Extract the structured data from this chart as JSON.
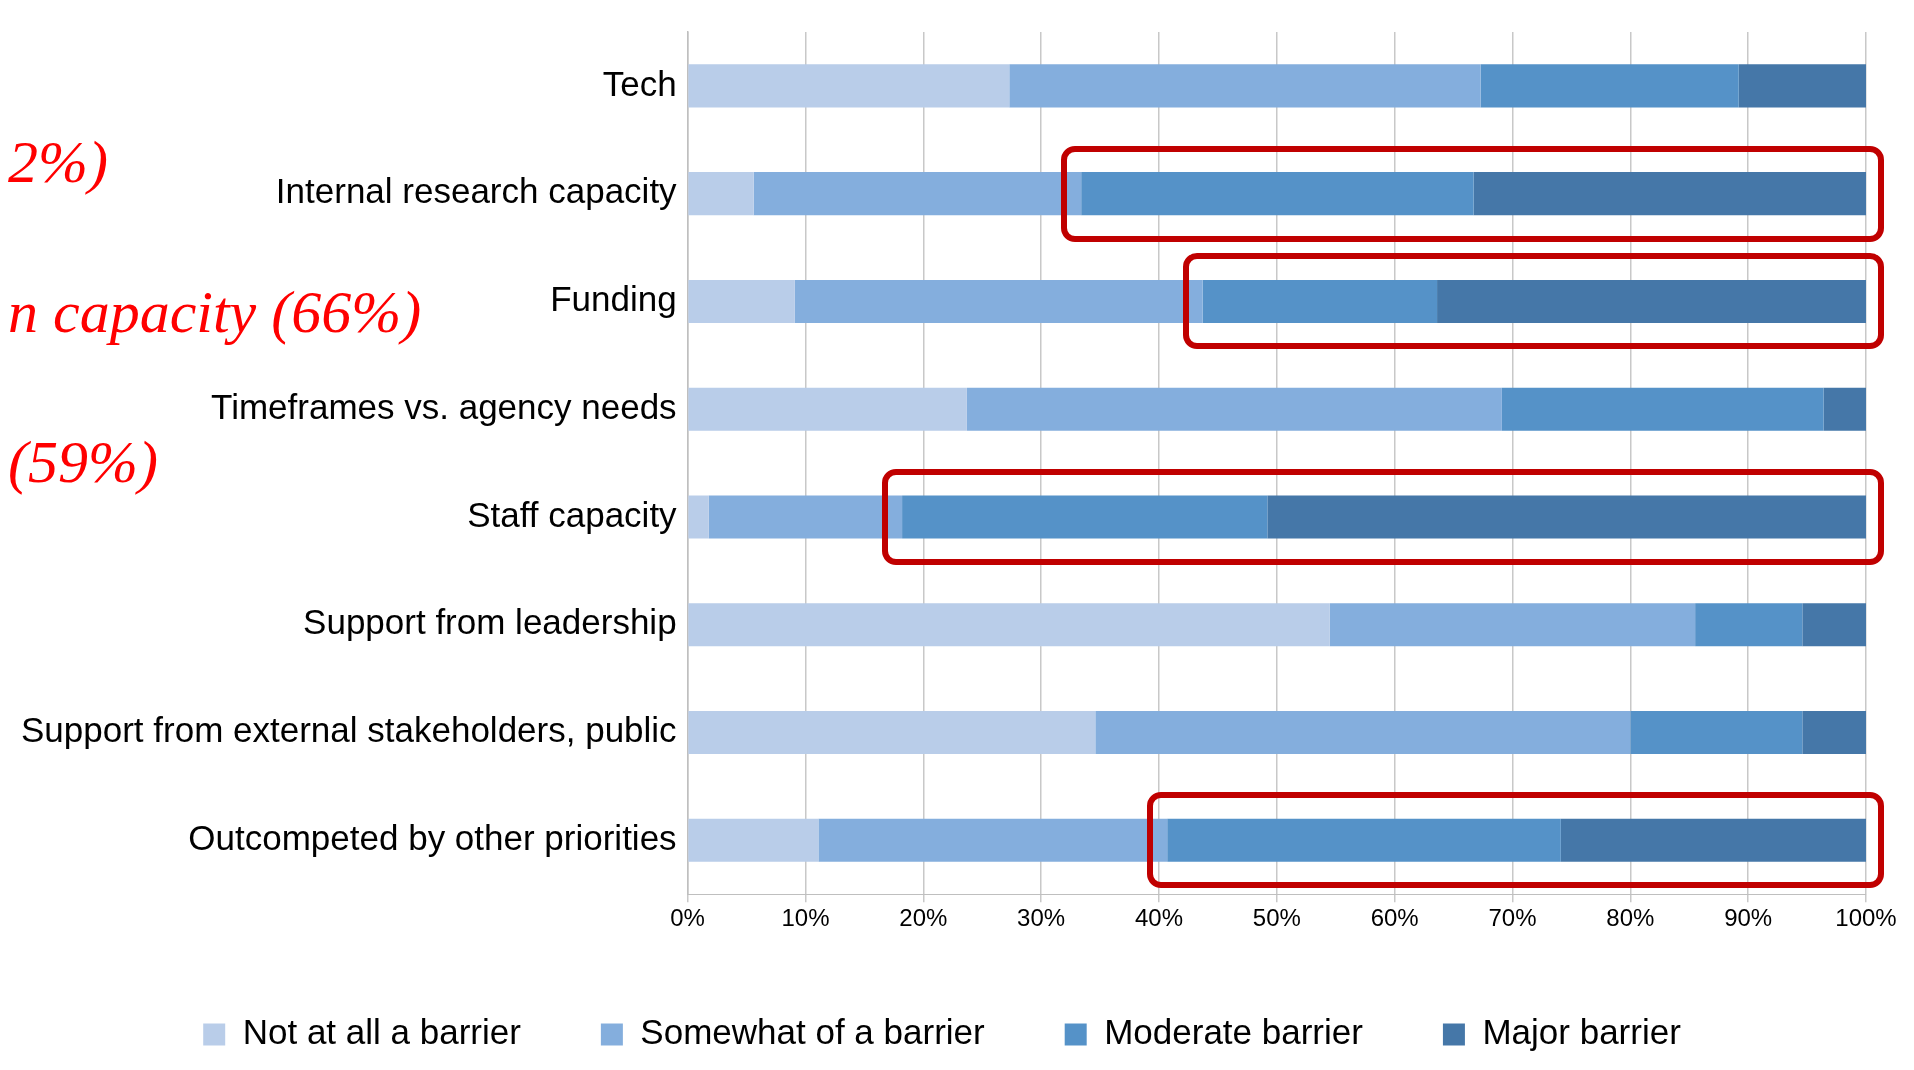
{
  "chart_data": {
    "type": "bar",
    "orientation": "horizontal",
    "stacked": true,
    "categories": [
      "Tech",
      "Internal research capacity",
      "Funding",
      "Timeframes vs. agency needs",
      "Staff capacity",
      "Support from leadership",
      "Support from external stakeholders, public",
      "Outcompeted by other priorities"
    ],
    "series": [
      {
        "name": "Not at all a barrier",
        "color": "#b9cde9",
        "values": [
          27.3,
          5.6,
          9.1,
          23.7,
          1.8,
          54.5,
          34.6,
          11.1
        ]
      },
      {
        "name": "Somewhat of a barrier",
        "color": "#84aedd",
        "values": [
          40,
          27.8,
          34.6,
          45.4,
          16.4,
          31,
          45.4,
          29.6
        ]
      },
      {
        "name": "Moderate barrier",
        "color": "#5592c8",
        "values": [
          21.9,
          33.3,
          19.9,
          27.3,
          31,
          9.1,
          14.6,
          33.4
        ]
      },
      {
        "name": "Major barrier",
        "color": "#4577a8",
        "values": [
          10.8,
          33.3,
          36.4,
          3.6,
          50.8,
          5.4,
          5.4,
          25.9
        ]
      }
    ],
    "xlim": [
      0,
      100
    ],
    "xticks": [
      {
        "value": 0,
        "label": "0%"
      },
      {
        "value": 10,
        "label": "10%"
      },
      {
        "value": 20,
        "label": "20%"
      },
      {
        "value": 30,
        "label": "30%"
      },
      {
        "value": 40,
        "label": "40%"
      },
      {
        "value": 50,
        "label": "50%"
      },
      {
        "value": 60,
        "label": "60%"
      },
      {
        "value": 70,
        "label": "70%"
      },
      {
        "value": 80,
        "label": "80%"
      },
      {
        "value": 90,
        "label": "90%"
      },
      {
        "value": 100,
        "label": "100%"
      }
    ],
    "grid": "x",
    "legend": "bottom",
    "annotations": [
      "2%)",
      "n capacity (66%)",
      "(59%)"
    ]
  }
}
